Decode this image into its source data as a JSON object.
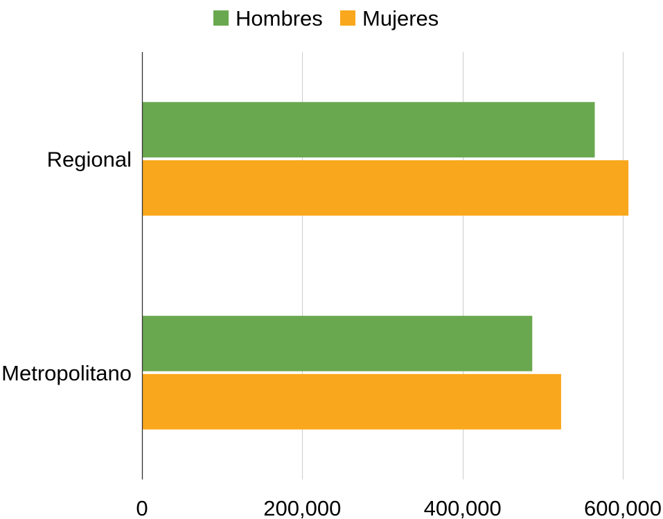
{
  "chart_data": {
    "type": "bar",
    "orientation": "horizontal",
    "categories": [
      "Regional",
      "Metropolitano"
    ],
    "series": [
      {
        "name": "Hombres",
        "color": "#6aa84f",
        "values": [
          565000,
          487000
        ]
      },
      {
        "name": "Mujeres",
        "color": "#f9a71c",
        "values": [
          607000,
          523000
        ]
      }
    ],
    "xlim": [
      0,
      600000
    ],
    "x_ticks": [
      0,
      200000,
      400000,
      600000
    ],
    "x_tick_labels": [
      "0",
      "200,000",
      "400,000",
      "600,000"
    ],
    "grid": "vertical",
    "legend_position": "top-center",
    "title": "",
    "xlabel": "",
    "ylabel": ""
  }
}
